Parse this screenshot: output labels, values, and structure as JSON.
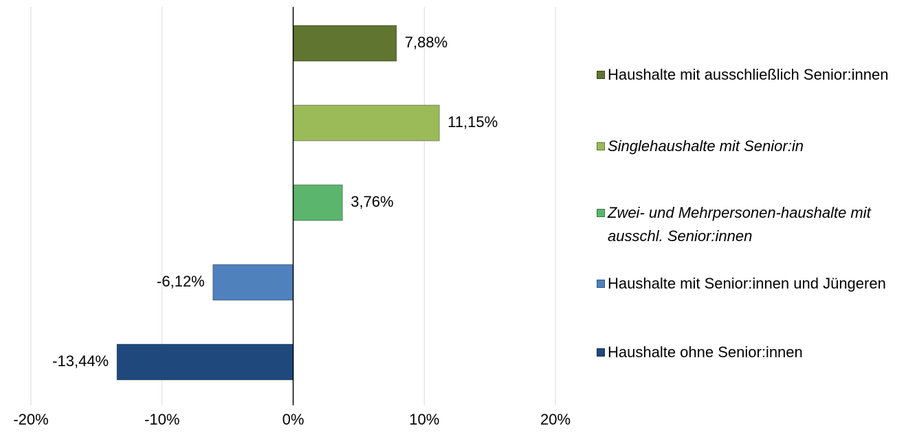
{
  "chart_data": {
    "type": "hbar",
    "series": [
      {
        "name": "Haushalte mit ausschließlich Senior:innen",
        "color": "#5f7530",
        "values": [
          7.88
        ],
        "value_labels": [
          "7,88%"
        ]
      },
      {
        "name": "Singlehaushalte mit Senior:in",
        "color": "#9bbb59",
        "values": [
          11.15
        ],
        "value_labels": [
          "11,15%"
        ],
        "italic": true
      },
      {
        "name": "Zwei- und Mehrpersonen-haushalte mit ausschl. Senior:innen",
        "color": "#5cb56d",
        "values": [
          3.76
        ],
        "value_labels": [
          "3,76%"
        ],
        "italic": true
      },
      {
        "name": "Haushalte mit Senior:innen und Jüngeren",
        "color": "#4f81bd",
        "values": [
          -6.12
        ],
        "value_labels": [
          "-6,12%"
        ]
      },
      {
        "name": "Haushalte ohne Senior:innen",
        "color": "#1f497d",
        "values": [
          -13.44
        ],
        "value_labels": [
          "-13,44%"
        ]
      }
    ],
    "xlim": [
      -20,
      20
    ],
    "xticks": [
      {
        "value": -20,
        "label": "-20%"
      },
      {
        "value": -10,
        "label": "-10%"
      },
      {
        "value": 0,
        "label": "0%"
      },
      {
        "value": 10,
        "label": "10%"
      },
      {
        "value": 20,
        "label": "20%"
      }
    ],
    "grid": true,
    "legend": "right"
  }
}
